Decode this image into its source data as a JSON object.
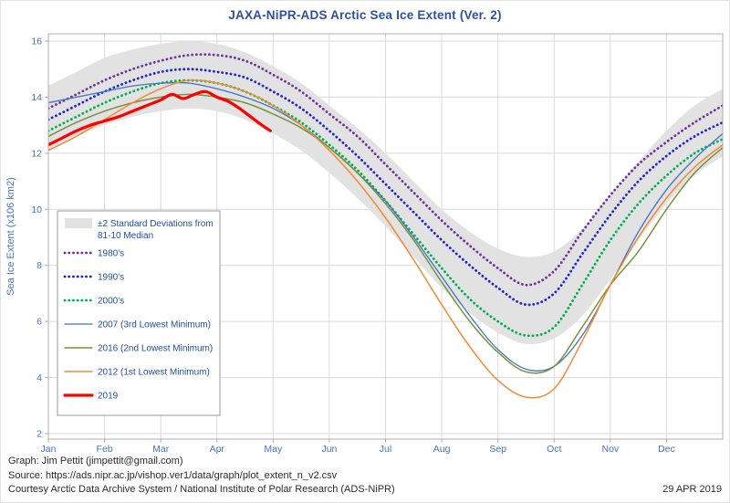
{
  "title": "JAXA-NiPR-ADS Arctic Sea Ice Extent (Ver. 2)",
  "footer": {
    "line1": "Graph: Jim Pettit (jimpettit@gmail.com)",
    "line2": "Source: https://ads.nipr.ac.jp/vishop.ver1/data/graph/plot_extent_n_v2.csv",
    "line3": "Courtesy Arctic Data Archive System / National Institute of Polar Research (ADS-NiPR)",
    "date": "29 APR 2019"
  },
  "chart_data": {
    "type": "line",
    "title": "JAXA-NiPR-ADS Arctic Sea Ice Extent (Ver. 2)",
    "ylabel": "Sea Ice Extent (x106 km2)",
    "ylim": [
      2,
      16
    ],
    "yticks": [
      2,
      4,
      6,
      8,
      10,
      12,
      14,
      16
    ],
    "xlim": [
      0,
      12
    ],
    "grid": true,
    "legend_position": "middle-left",
    "month_labels": [
      "Jan",
      "Feb",
      "Mar",
      "Apr",
      "May",
      "Jun",
      "Jul",
      "Aug",
      "Sep",
      "Oct",
      "Nov",
      "Dec"
    ],
    "x": [
      0,
      0.5,
      1,
      1.5,
      2,
      2.5,
      3,
      3.5,
      4,
      4.5,
      5,
      5.5,
      6,
      6.5,
      7,
      7.5,
      8,
      8.5,
      9,
      9.5,
      10,
      10.5,
      11,
      11.5,
      12
    ],
    "band": {
      "label_lines": [
        "±2 Standard Deviations from",
        "81-10 Median"
      ],
      "color": "#E2E2E2",
      "top": [
        14.4,
        14.9,
        15.4,
        15.7,
        15.9,
        16.0,
        15.9,
        15.6,
        15.1,
        14.5,
        13.7,
        12.9,
        12.0,
        11.0,
        10.0,
        9.2,
        8.6,
        8.3,
        8.5,
        9.3,
        10.5,
        11.7,
        12.8,
        13.7,
        14.3
      ],
      "bottom": [
        12.1,
        12.6,
        13.0,
        13.3,
        13.5,
        13.6,
        13.5,
        13.2,
        12.7,
        12.1,
        11.3,
        10.4,
        9.4,
        8.3,
        7.2,
        6.3,
        5.6,
        5.2,
        5.4,
        6.2,
        7.5,
        8.9,
        10.2,
        11.2,
        11.9
      ]
    },
    "series": [
      {
        "name": "1980's",
        "color": "#7030A0",
        "style": "dotted",
        "width": 2.8,
        "values": [
          13.6,
          14.1,
          14.6,
          15.0,
          15.3,
          15.5,
          15.5,
          15.3,
          14.8,
          14.2,
          13.4,
          12.6,
          11.6,
          10.6,
          9.6,
          8.7,
          7.9,
          7.3,
          7.8,
          9.2,
          10.5,
          11.6,
          12.4,
          13.1,
          13.7
        ]
      },
      {
        "name": "1990's",
        "color": "#2222CC",
        "style": "dotted",
        "width": 2.8,
        "values": [
          13.2,
          13.7,
          14.2,
          14.6,
          14.9,
          15.0,
          14.9,
          14.7,
          14.2,
          13.6,
          12.8,
          11.9,
          10.9,
          9.9,
          8.9,
          8.0,
          7.2,
          6.6,
          7.0,
          8.4,
          9.8,
          11.0,
          11.9,
          12.6,
          13.1
        ]
      },
      {
        "name": "2000's",
        "color": "#00B050",
        "style": "dotted",
        "width": 2.8,
        "values": [
          12.8,
          13.3,
          13.8,
          14.2,
          14.5,
          14.6,
          14.5,
          14.2,
          13.7,
          13.1,
          12.3,
          11.4,
          10.3,
          9.1,
          7.9,
          6.8,
          6.0,
          5.5,
          5.8,
          7.3,
          8.9,
          10.2,
          11.2,
          12.0,
          12.5
        ]
      },
      {
        "name": "2007 (3rd Lowest Minimum)",
        "color": "#4472C4",
        "style": "solid",
        "width": 1.3,
        "values": [
          13.8,
          14.0,
          14.2,
          14.4,
          14.5,
          14.5,
          14.3,
          14.0,
          13.6,
          13.0,
          12.2,
          11.3,
          10.3,
          9.0,
          7.6,
          6.2,
          5.0,
          4.3,
          4.4,
          5.5,
          7.3,
          9.2,
          10.7,
          11.8,
          12.7
        ]
      },
      {
        "name": "2016 (2nd Lowest Minimum)",
        "color": "#76933C",
        "style": "solid",
        "width": 1.5,
        "values": [
          12.6,
          13.1,
          13.5,
          13.8,
          14.0,
          14.1,
          14.0,
          13.8,
          13.4,
          12.9,
          12.2,
          11.3,
          10.2,
          8.9,
          7.4,
          6.0,
          4.9,
          4.2,
          4.4,
          5.8,
          7.3,
          8.5,
          10.0,
          11.3,
          12.2
        ]
      },
      {
        "name": "2012 (1st Lowest Minimum)",
        "color": "#F28A33",
        "style": "solid",
        "width": 1.5,
        "values": [
          12.1,
          12.6,
          13.2,
          13.8,
          14.3,
          14.6,
          14.5,
          14.2,
          13.7,
          13.0,
          12.1,
          11.0,
          9.7,
          8.2,
          6.6,
          5.1,
          3.9,
          3.3,
          3.6,
          5.3,
          7.3,
          9.0,
          10.4,
          11.5,
          12.3
        ]
      },
      {
        "name": "2019",
        "color": "#FF0000",
        "style": "solid",
        "width": 3.2,
        "x": [
          0,
          0.25,
          0.5,
          0.75,
          1,
          1.25,
          1.5,
          1.75,
          2,
          2.2,
          2.4,
          2.6,
          2.8,
          3,
          3.2,
          3.4,
          3.6,
          3.8,
          3.95
        ],
        "values": [
          12.3,
          12.55,
          12.8,
          13.0,
          13.15,
          13.3,
          13.5,
          13.7,
          13.9,
          14.1,
          13.95,
          14.1,
          14.2,
          14.0,
          13.85,
          13.6,
          13.3,
          13.0,
          12.8
        ]
      }
    ],
    "colors": {
      "title": "#2E4FA3",
      "axis_text": "#4472C4",
      "grid": "#DADADA",
      "plot_border": "#B0B0B0",
      "legend_text": "#1F4EA1",
      "legend_border": "#9A9A9A"
    }
  }
}
